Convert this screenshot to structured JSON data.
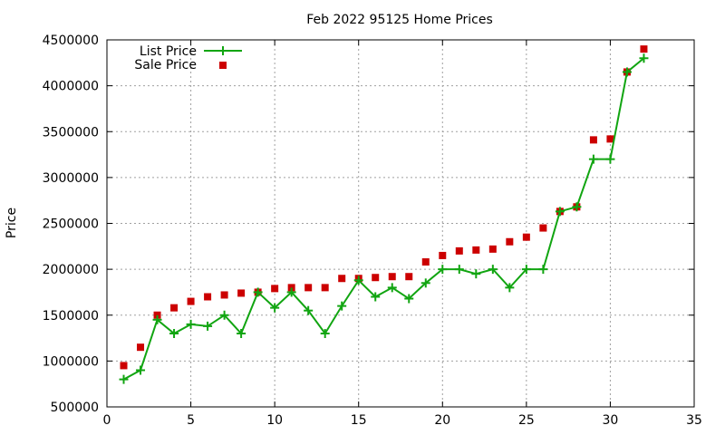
{
  "chart_data": {
    "type": "line",
    "title": "Feb 2022 95125 Home Prices",
    "xlabel": "",
    "ylabel": "Price",
    "xlim": [
      0,
      35
    ],
    "ylim": [
      500000,
      4500000
    ],
    "xticks": [
      0,
      5,
      10,
      15,
      20,
      25,
      30,
      35
    ],
    "yticks": [
      500000,
      1000000,
      1500000,
      2000000,
      2500000,
      3000000,
      3500000,
      4000000,
      4500000
    ],
    "grid": true,
    "legend_position": "top-left",
    "x": [
      1,
      2,
      3,
      4,
      5,
      6,
      7,
      8,
      9,
      10,
      11,
      12,
      13,
      14,
      15,
      16,
      17,
      18,
      19,
      20,
      21,
      22,
      23,
      24,
      25,
      26,
      27,
      28,
      29,
      30,
      31,
      32
    ],
    "series": [
      {
        "name": "List Price",
        "style": "line-plus",
        "color": "#11a511",
        "values": [
          800000,
          900000,
          1450000,
          1300000,
          1400000,
          1380000,
          1500000,
          1300000,
          1750000,
          1580000,
          1750000,
          1550000,
          1300000,
          1600000,
          1880000,
          1700000,
          1800000,
          1680000,
          1850000,
          2000000,
          2000000,
          1950000,
          2000000,
          1800000,
          2000000,
          2000000,
          2630000,
          2680000,
          3200000,
          3200000,
          4150000,
          4300000
        ]
      },
      {
        "name": "Sale Price",
        "style": "square-markers",
        "color": "#cc0000",
        "values": [
          950000,
          1150000,
          1500000,
          1580000,
          1650000,
          1700000,
          1720000,
          1740000,
          1750000,
          1790000,
          1800000,
          1800000,
          1800000,
          1900000,
          1900000,
          1910000,
          1920000,
          1920000,
          2080000,
          2150000,
          2200000,
          2210000,
          2220000,
          2300000,
          2350000,
          2450000,
          2630000,
          2680000,
          3410000,
          3420000,
          4150000,
          4400000
        ]
      }
    ]
  }
}
